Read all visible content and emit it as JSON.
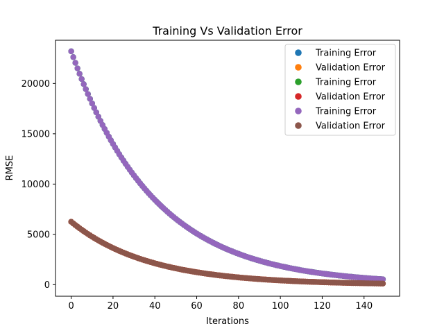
{
  "chart_data": {
    "type": "scatter",
    "title": "Training Vs Validation Error",
    "xlabel": "Iterations",
    "ylabel": "RMSE",
    "xlim": [
      -7.5,
      157
    ],
    "ylim": [
      -1150,
      24300
    ],
    "xticks": [
      0,
      20,
      40,
      60,
      80,
      100,
      120,
      140
    ],
    "yticks": [
      0,
      5000,
      10000,
      15000,
      20000
    ],
    "grid": false,
    "legend_position": "top-right",
    "x": {
      "start": 0,
      "end": 149,
      "step": 1
    },
    "series": [
      {
        "name": "Training Error",
        "color": "#1f77b4",
        "hidden_under_overlap": true,
        "decay": {
          "initial": 23200,
          "rate": 0.0253,
          "floor": 0
        }
      },
      {
        "name": "Validation Error",
        "color": "#ff7f0e",
        "hidden_under_overlap": true,
        "decay": {
          "initial": 6250,
          "rate": 0.027,
          "floor": 0
        }
      },
      {
        "name": "Training Error",
        "color": "#2ca02c",
        "hidden_under_overlap": true,
        "decay": {
          "initial": 23200,
          "rate": 0.0253,
          "floor": 0
        }
      },
      {
        "name": "Validation Error",
        "color": "#d62728",
        "hidden_under_overlap": true,
        "decay": {
          "initial": 6250,
          "rate": 0.027,
          "floor": 0
        }
      },
      {
        "name": "Training Error",
        "color": "#9467bd",
        "hidden_under_overlap": false,
        "decay": {
          "initial": 23200,
          "rate": 0.0253,
          "floor": 0
        }
      },
      {
        "name": "Validation Error",
        "color": "#8c564b",
        "hidden_under_overlap": false,
        "decay": {
          "initial": 6250,
          "rate": 0.027,
          "floor": 0
        }
      }
    ]
  }
}
